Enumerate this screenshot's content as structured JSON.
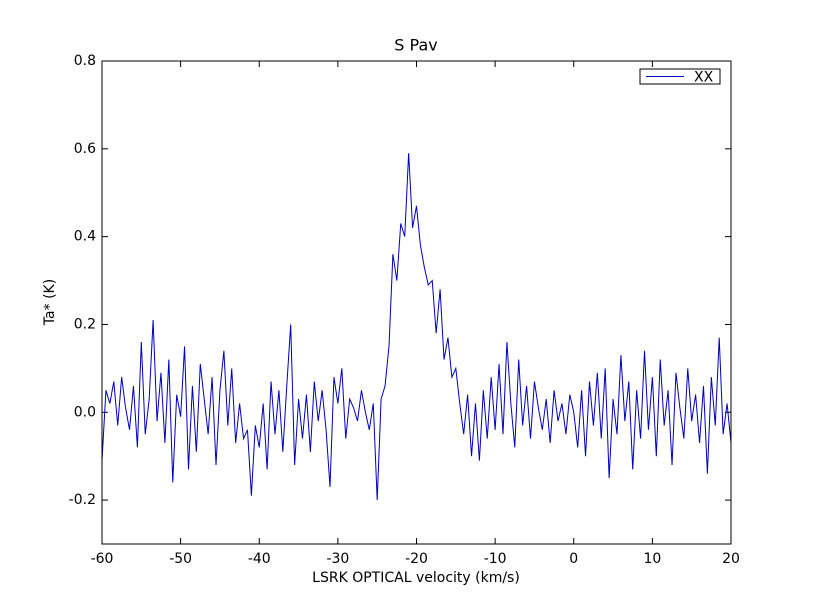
{
  "chart_data": {
    "type": "line",
    "title": "S Pav",
    "x_label": "LSRK OPTICAL velocity (km/s)",
    "y_label": "Ta* (K)",
    "x": [
      -60,
      -59.5,
      -59,
      -58.5,
      -58,
      -57.5,
      -57,
      -56.5,
      -56,
      -55.5,
      -55,
      -54.5,
      -54,
      -53.5,
      -53,
      -52.5,
      -52,
      -51.5,
      -51,
      -50.5,
      -50,
      -49.5,
      -49,
      -48.5,
      -48,
      -47.5,
      -47,
      -46.5,
      -46,
      -45.5,
      -45,
      -44.5,
      -44,
      -43.5,
      -43,
      -42.5,
      -42,
      -41.5,
      -41,
      -40.5,
      -40,
      -39.5,
      -39,
      -38.5,
      -38,
      -37.5,
      -37,
      -36.5,
      -36,
      -35.5,
      -35,
      -34.5,
      -34,
      -33.5,
      -33,
      -32.5,
      -32,
      -31.5,
      -31,
      -30.5,
      -30,
      -29.5,
      -29,
      -28.5,
      -28,
      -27.5,
      -27,
      -26.5,
      -26,
      -25.5,
      -25,
      -24.5,
      -24,
      -23.5,
      -23,
      -22.5,
      -22,
      -21.5,
      -21,
      -20.5,
      -20,
      -19.5,
      -19,
      -18.5,
      -18,
      -17.5,
      -17,
      -16.5,
      -16,
      -15.5,
      -15,
      -14.5,
      -14,
      -13.5,
      -13,
      -12.5,
      -12,
      -11.5,
      -11,
      -10.5,
      -10,
      -9.5,
      -9,
      -8.5,
      -8,
      -7.5,
      -7,
      -6.5,
      -6,
      -5.5,
      -5,
      -4.5,
      -4,
      -3.5,
      -3,
      -2.5,
      -2,
      -1.5,
      -1,
      -0.5,
      0,
      0.5,
      1,
      1.5,
      2,
      2.5,
      3,
      3.5,
      4,
      4.5,
      5,
      5.5,
      6,
      6.5,
      7,
      7.5,
      8,
      8.5,
      9,
      9.5,
      10,
      10.5,
      11,
      11.5,
      12,
      12.5,
      13,
      13.5,
      14,
      14.5,
      15,
      15.5,
      16,
      16.5,
      17,
      17.5,
      18,
      18.5,
      19,
      19.5,
      20
    ],
    "series": [
      {
        "name": "XX",
        "color": "#0000c0",
        "values": [
          -0.11,
          0.05,
          0.02,
          0.07,
          -0.03,
          0.08,
          0.01,
          -0.04,
          0.06,
          -0.08,
          0.16,
          -0.05,
          0.03,
          0.21,
          -0.02,
          0.09,
          -0.07,
          0.12,
          -0.16,
          0.04,
          -0.01,
          0.15,
          -0.13,
          0.06,
          -0.09,
          0.11,
          0.03,
          -0.05,
          0.08,
          -0.12,
          0.05,
          0.14,
          -0.03,
          0.1,
          -0.07,
          0.02,
          -0.06,
          -0.04,
          -0.19,
          -0.03,
          -0.08,
          0.02,
          -0.13,
          0.07,
          -0.05,
          0.05,
          -0.09,
          0.06,
          0.2,
          -0.12,
          0.03,
          -0.06,
          0.04,
          -0.09,
          0.07,
          -0.02,
          0.05,
          -0.04,
          -0.17,
          0.08,
          0.02,
          0.1,
          -0.06,
          0.03,
          0.01,
          -0.02,
          0.05,
          0.0,
          -0.04,
          0.02,
          -0.2,
          0.03,
          0.06,
          0.15,
          0.36,
          0.3,
          0.43,
          0.4,
          0.59,
          0.42,
          0.47,
          0.38,
          0.33,
          0.29,
          0.3,
          0.18,
          0.28,
          0.12,
          0.17,
          0.08,
          0.1,
          0.02,
          -0.05,
          0.04,
          -0.1,
          0.02,
          -0.11,
          0.05,
          -0.06,
          0.08,
          -0.04,
          0.11,
          -0.05,
          0.16,
          0.02,
          -0.08,
          0.12,
          -0.03,
          0.06,
          -0.06,
          0.07,
          0.01,
          -0.04,
          0.03,
          -0.07,
          0.05,
          -0.02,
          0.02,
          -0.05,
          0.04,
          0.0,
          -0.08,
          0.05,
          -0.1,
          0.07,
          -0.03,
          0.09,
          -0.06,
          0.1,
          -0.15,
          0.03,
          -0.05,
          0.13,
          -0.02,
          0.07,
          -0.13,
          0.05,
          -0.06,
          0.14,
          -0.04,
          0.08,
          -0.1,
          0.12,
          -0.03,
          0.05,
          -0.12,
          0.09,
          0.01,
          -0.06,
          0.1,
          -0.02,
          0.04,
          -0.07,
          0.06,
          -0.14,
          0.08,
          -0.03,
          0.17,
          -0.05,
          0.02,
          -0.07
        ]
      }
    ],
    "xlim": [
      -60,
      20
    ],
    "xticks": [
      -60,
      -50,
      -40,
      -30,
      -20,
      -10,
      0,
      10,
      20
    ],
    "ylim": [
      -0.3,
      0.8
    ],
    "yticks": [
      -0.2,
      {
        "value": 0,
        "label": "0.0"
      },
      0.2,
      0.4,
      0.6,
      0.8
    ],
    "legend": "upper right"
  }
}
